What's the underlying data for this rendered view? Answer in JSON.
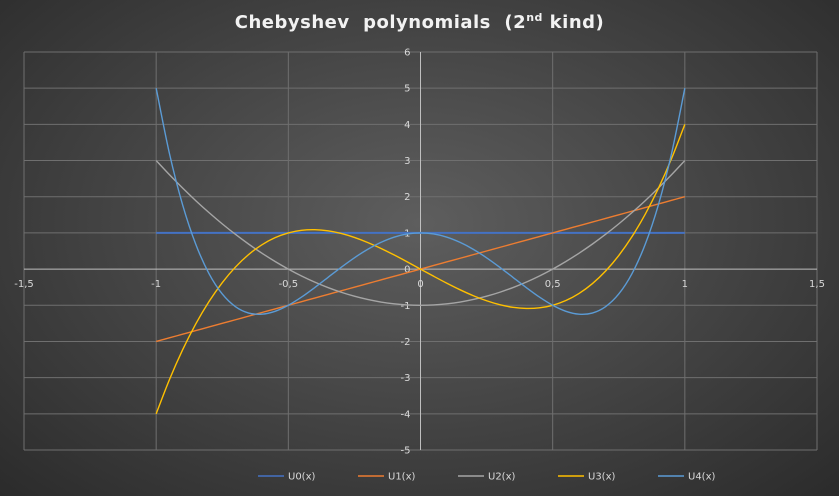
{
  "chart_data": {
    "type": "line",
    "title": {
      "prefix": "Chebyshev  polynomials  (2",
      "superscript": "nd",
      "suffix": " kind)"
    },
    "xlim": [
      -1.5,
      1.5
    ],
    "ylim": [
      -5,
      6
    ],
    "x_ticks": [
      -1.5,
      -1,
      -0.5,
      0,
      0.5,
      1,
      1.5
    ],
    "x_tick_labels": [
      "-1,5",
      "-1",
      "-0,5",
      "0",
      "0,5",
      "1",
      "1,5"
    ],
    "y_ticks": [
      -5,
      -4,
      -3,
      -2,
      -1,
      0,
      1,
      2,
      3,
      4,
      5,
      6
    ],
    "y_tick_labels": [
      "-5",
      "-4",
      "-3",
      "-2",
      "-1",
      "0",
      "1",
      "2",
      "3",
      "4",
      "5",
      "6"
    ],
    "grid": true,
    "legend_position": "bottom",
    "x": [
      -1,
      -0.95,
      -0.9,
      -0.85,
      -0.8,
      -0.75,
      -0.7,
      -0.65,
      -0.6,
      -0.55,
      -0.5,
      -0.45,
      -0.4,
      -0.35,
      -0.3,
      -0.25,
      -0.2,
      -0.15,
      -0.1,
      -0.05,
      0,
      0.05,
      0.1,
      0.15,
      0.2,
      0.25,
      0.3,
      0.35,
      0.4,
      0.45,
      0.5,
      0.55,
      0.6,
      0.65,
      0.7,
      0.75,
      0.8,
      0.85,
      0.9,
      0.95,
      1
    ],
    "series": [
      {
        "name": "U0(x)",
        "color": "#4472c4",
        "values": [
          1,
          1,
          1,
          1,
          1,
          1,
          1,
          1,
          1,
          1,
          1,
          1,
          1,
          1,
          1,
          1,
          1,
          1,
          1,
          1,
          1,
          1,
          1,
          1,
          1,
          1,
          1,
          1,
          1,
          1,
          1,
          1,
          1,
          1,
          1,
          1,
          1,
          1,
          1,
          1,
          1
        ]
      },
      {
        "name": "U1(x)",
        "color": "#ed7d31",
        "values": [
          -2,
          -1.9,
          -1.8,
          -1.7,
          -1.6,
          -1.5,
          -1.4,
          -1.3,
          -1.2,
          -1.1,
          -1,
          -0.9,
          -0.8,
          -0.7,
          -0.6,
          -0.5,
          -0.4,
          -0.3,
          -0.2,
          -0.1,
          0,
          0.1,
          0.2,
          0.3,
          0.4,
          0.5,
          0.6,
          0.7,
          0.8,
          0.9,
          1,
          1.1,
          1.2,
          1.3,
          1.4,
          1.5,
          1.6,
          1.7,
          1.8,
          1.9,
          2
        ]
      },
      {
        "name": "U2(x)",
        "color": "#a5a5a5",
        "values": [
          3,
          2.61,
          2.24,
          1.89,
          1.56,
          1.25,
          0.96,
          0.69,
          0.44,
          0.21,
          0,
          -0.19,
          -0.36,
          -0.51,
          -0.64,
          -0.75,
          -0.84,
          -0.91,
          -0.96,
          -0.99,
          -1,
          -0.99,
          -0.96,
          -0.91,
          -0.84,
          -0.75,
          -0.64,
          -0.51,
          -0.36,
          -0.19,
          0,
          0.21,
          0.44,
          0.69,
          0.96,
          1.25,
          1.56,
          1.89,
          2.24,
          2.61,
          3
        ]
      },
      {
        "name": "U3(x)",
        "color": "#ffc000",
        "values": [
          -4,
          -3.059,
          -2.232,
          -1.513,
          -0.896,
          -0.375,
          0.056,
          0.403,
          0.672,
          0.869,
          1,
          1.071,
          1.088,
          1.057,
          0.984,
          0.875,
          0.736,
          0.573,
          0.392,
          0.199,
          0,
          -0.199,
          -0.392,
          -0.573,
          -0.736,
          -0.875,
          -0.984,
          -1.057,
          -1.088,
          -1.071,
          -1,
          -0.869,
          -0.672,
          -0.403,
          -0.056,
          0.375,
          0.896,
          1.513,
          2.232,
          3.059,
          4
        ]
      },
      {
        "name": "U4(x)",
        "color": "#5b9bd5",
        "values": [
          5,
          3.202,
          1.778,
          0.683,
          -0.126,
          -0.688,
          -1.038,
          -1.214,
          -1.246,
          -1.166,
          -1,
          -0.774,
          -0.51,
          -0.23,
          0.05,
          0.313,
          0.546,
          0.737,
          0.882,
          0.97,
          1,
          0.97,
          0.882,
          0.737,
          0.546,
          0.313,
          0.05,
          -0.23,
          -0.51,
          -0.774,
          -1,
          -1.166,
          -1.246,
          -1.214,
          -1.038,
          -0.688,
          -0.126,
          0.683,
          1.778,
          3.202,
          5
        ]
      }
    ]
  }
}
